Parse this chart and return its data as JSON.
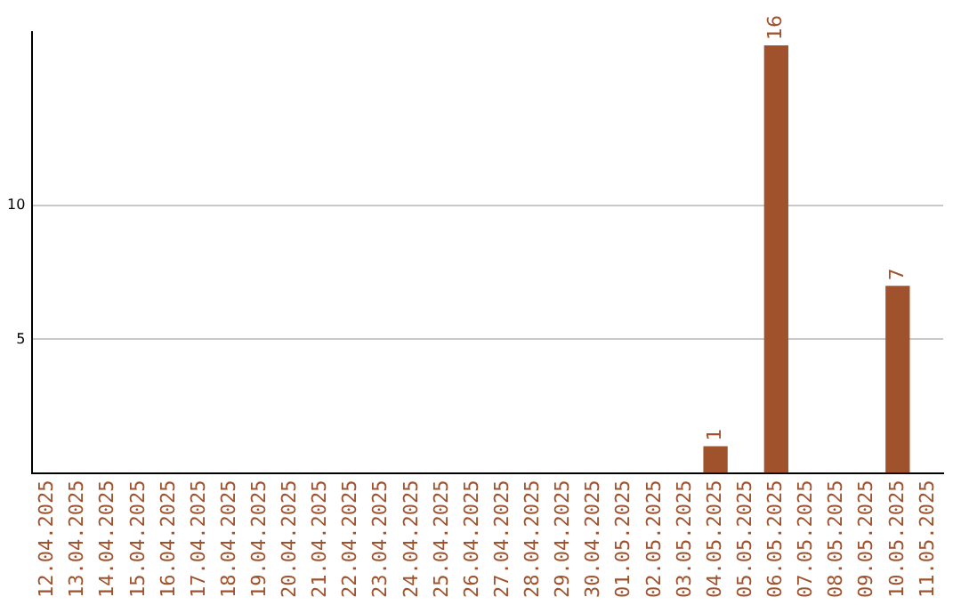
{
  "chart_data": {
    "type": "bar",
    "categories": [
      "12.04.2025",
      "13.04.2025",
      "14.04.2025",
      "15.04.2025",
      "16.04.2025",
      "17.04.2025",
      "18.04.2025",
      "19.04.2025",
      "20.04.2025",
      "21.04.2025",
      "22.04.2025",
      "23.04.2025",
      "24.04.2025",
      "25.04.2025",
      "26.04.2025",
      "27.04.2025",
      "28.04.2025",
      "29.04.2025",
      "30.04.2025",
      "01.05.2025",
      "02.05.2025",
      "03.05.2025",
      "04.05.2025",
      "05.05.2025",
      "06.05.2025",
      "07.05.2025",
      "08.05.2025",
      "09.05.2025",
      "10.05.2025",
      "11.05.2025"
    ],
    "values": [
      0,
      0,
      0,
      0,
      0,
      0,
      0,
      0,
      0,
      0,
      0,
      0,
      0,
      0,
      0,
      0,
      0,
      0,
      0,
      0,
      0,
      0,
      1,
      0,
      16,
      0,
      0,
      0,
      7,
      0
    ],
    "value_labels": [
      null,
      null,
      null,
      null,
      null,
      null,
      null,
      null,
      null,
      null,
      null,
      null,
      null,
      null,
      null,
      null,
      null,
      null,
      null,
      null,
      null,
      null,
      "1",
      null,
      "16",
      null,
      null,
      null,
      "7",
      null
    ],
    "color": "#a0522d",
    "ylim": [
      0,
      16.5
    ],
    "yticks": [
      5,
      10
    ],
    "grid": "y",
    "legend": false
  }
}
